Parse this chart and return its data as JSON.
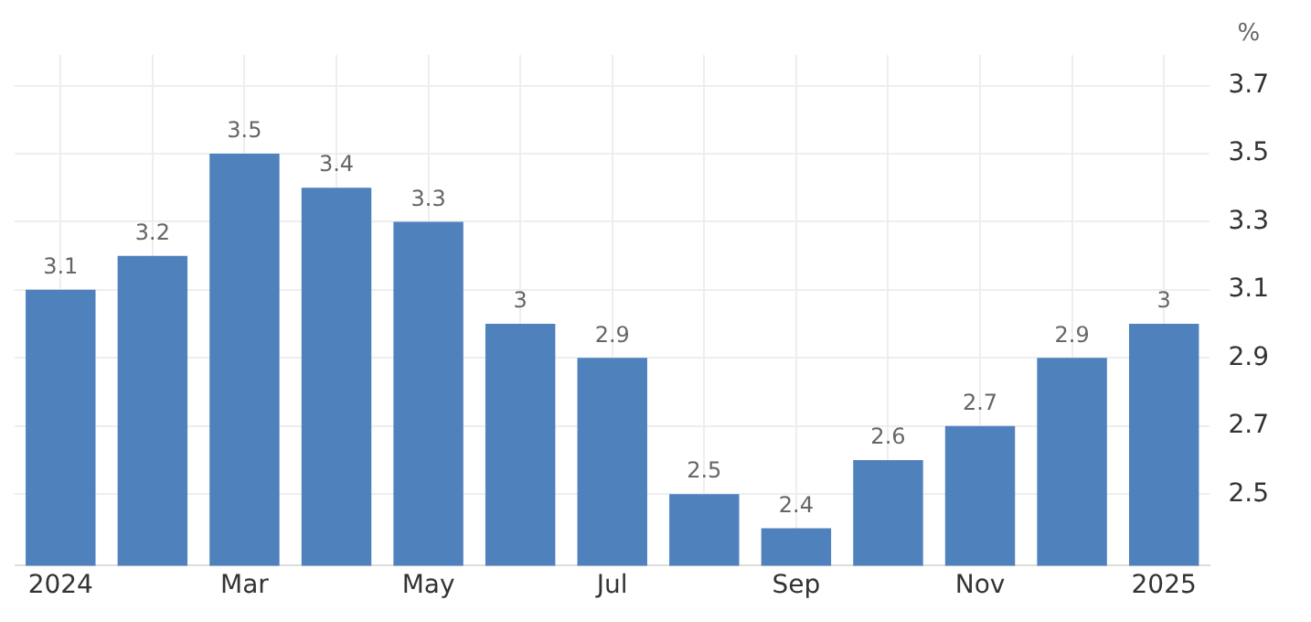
{
  "chart_data": {
    "type": "bar",
    "ylabel": "%",
    "categories": [
      "2024",
      null,
      "Mar",
      null,
      "May",
      null,
      "Jul",
      null,
      "Sep",
      null,
      "Nov",
      null,
      "2025"
    ],
    "values": [
      3.1,
      3.2,
      3.5,
      3.4,
      3.3,
      3,
      2.9,
      2.5,
      2.4,
      2.6,
      2.7,
      2.9,
      3
    ],
    "color": "#4f81bd",
    "ylim": [
      2.29,
      3.79
    ],
    "yticks": [
      2.5,
      2.7,
      2.9,
      3.1,
      3.3,
      3.5,
      3.7
    ],
    "grid": true,
    "data_labels": true,
    "legend": false
  }
}
